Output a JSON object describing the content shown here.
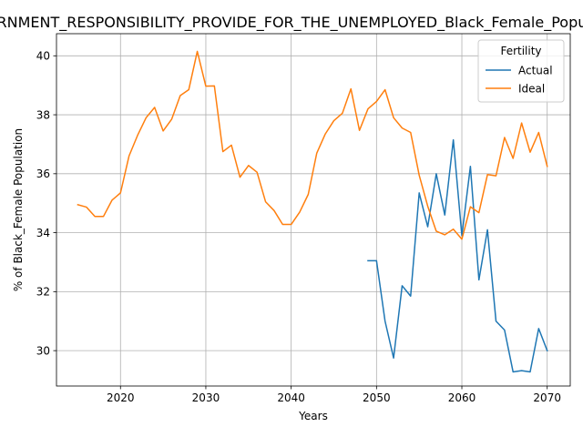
{
  "chart_data": {
    "type": "line",
    "title": "GOVERNMENT_RESPONSIBILITY_PROVIDE_FOR_THE_UNEMPLOYED_Black_Female_Population",
    "xlabel": "Years",
    "ylabel": "% of Black_Female Population",
    "xlim": [
      2012.5,
      2072.7
    ],
    "ylim": [
      28.8,
      40.75
    ],
    "x_ticks": [
      2020,
      2030,
      2040,
      2050,
      2060,
      2070
    ],
    "y_ticks": [
      30,
      32,
      34,
      36,
      38,
      40
    ],
    "grid": true,
    "legend": {
      "title": "Fertility",
      "placement": "top-right"
    },
    "series": [
      {
        "name": "Actual",
        "color": "#1f77b4",
        "x": [
          2049,
          2050,
          2051,
          2052,
          2053,
          2054,
          2055,
          2056,
          2057,
          2058,
          2059,
          2060,
          2061,
          2062,
          2063,
          2064,
          2065,
          2066,
          2067,
          2068,
          2069,
          2070
        ],
        "values": [
          33.05,
          33.05,
          31.0,
          29.75,
          32.2,
          31.85,
          35.35,
          34.2,
          36.0,
          34.6,
          37.15,
          33.9,
          36.25,
          32.4,
          34.1,
          31.0,
          30.7,
          29.28,
          29.32,
          29.28,
          30.75,
          30.0
        ]
      },
      {
        "name": "Ideal",
        "color": "#ff7f0e",
        "x": [
          2015,
          2016,
          2017,
          2018,
          2019,
          2020,
          2021,
          2022,
          2023,
          2024,
          2025,
          2026,
          2027,
          2028,
          2029,
          2030,
          2031,
          2032,
          2033,
          2034,
          2035,
          2036,
          2037,
          2038,
          2039,
          2040,
          2041,
          2042,
          2043,
          2044,
          2045,
          2046,
          2047,
          2048,
          2049,
          2050,
          2051,
          2052,
          2053,
          2054,
          2055,
          2056,
          2057,
          2058,
          2059,
          2060,
          2061,
          2062,
          2063,
          2064,
          2065,
          2066,
          2067,
          2068,
          2069,
          2070
        ],
        "values": [
          34.95,
          34.87,
          34.55,
          34.55,
          35.1,
          35.35,
          36.6,
          37.3,
          37.9,
          38.25,
          37.45,
          37.85,
          38.65,
          38.85,
          40.15,
          38.97,
          38.98,
          36.75,
          36.97,
          35.88,
          36.28,
          36.05,
          35.05,
          34.75,
          34.28,
          34.28,
          34.7,
          35.3,
          36.7,
          37.35,
          37.8,
          38.05,
          38.88,
          37.47,
          38.2,
          38.45,
          38.85,
          37.9,
          37.55,
          37.4,
          35.95,
          34.9,
          34.05,
          33.93,
          34.12,
          33.78,
          34.88,
          34.68,
          35.97,
          35.93,
          37.23,
          36.52,
          37.72,
          36.73,
          37.4,
          36.25
        ]
      }
    ]
  }
}
